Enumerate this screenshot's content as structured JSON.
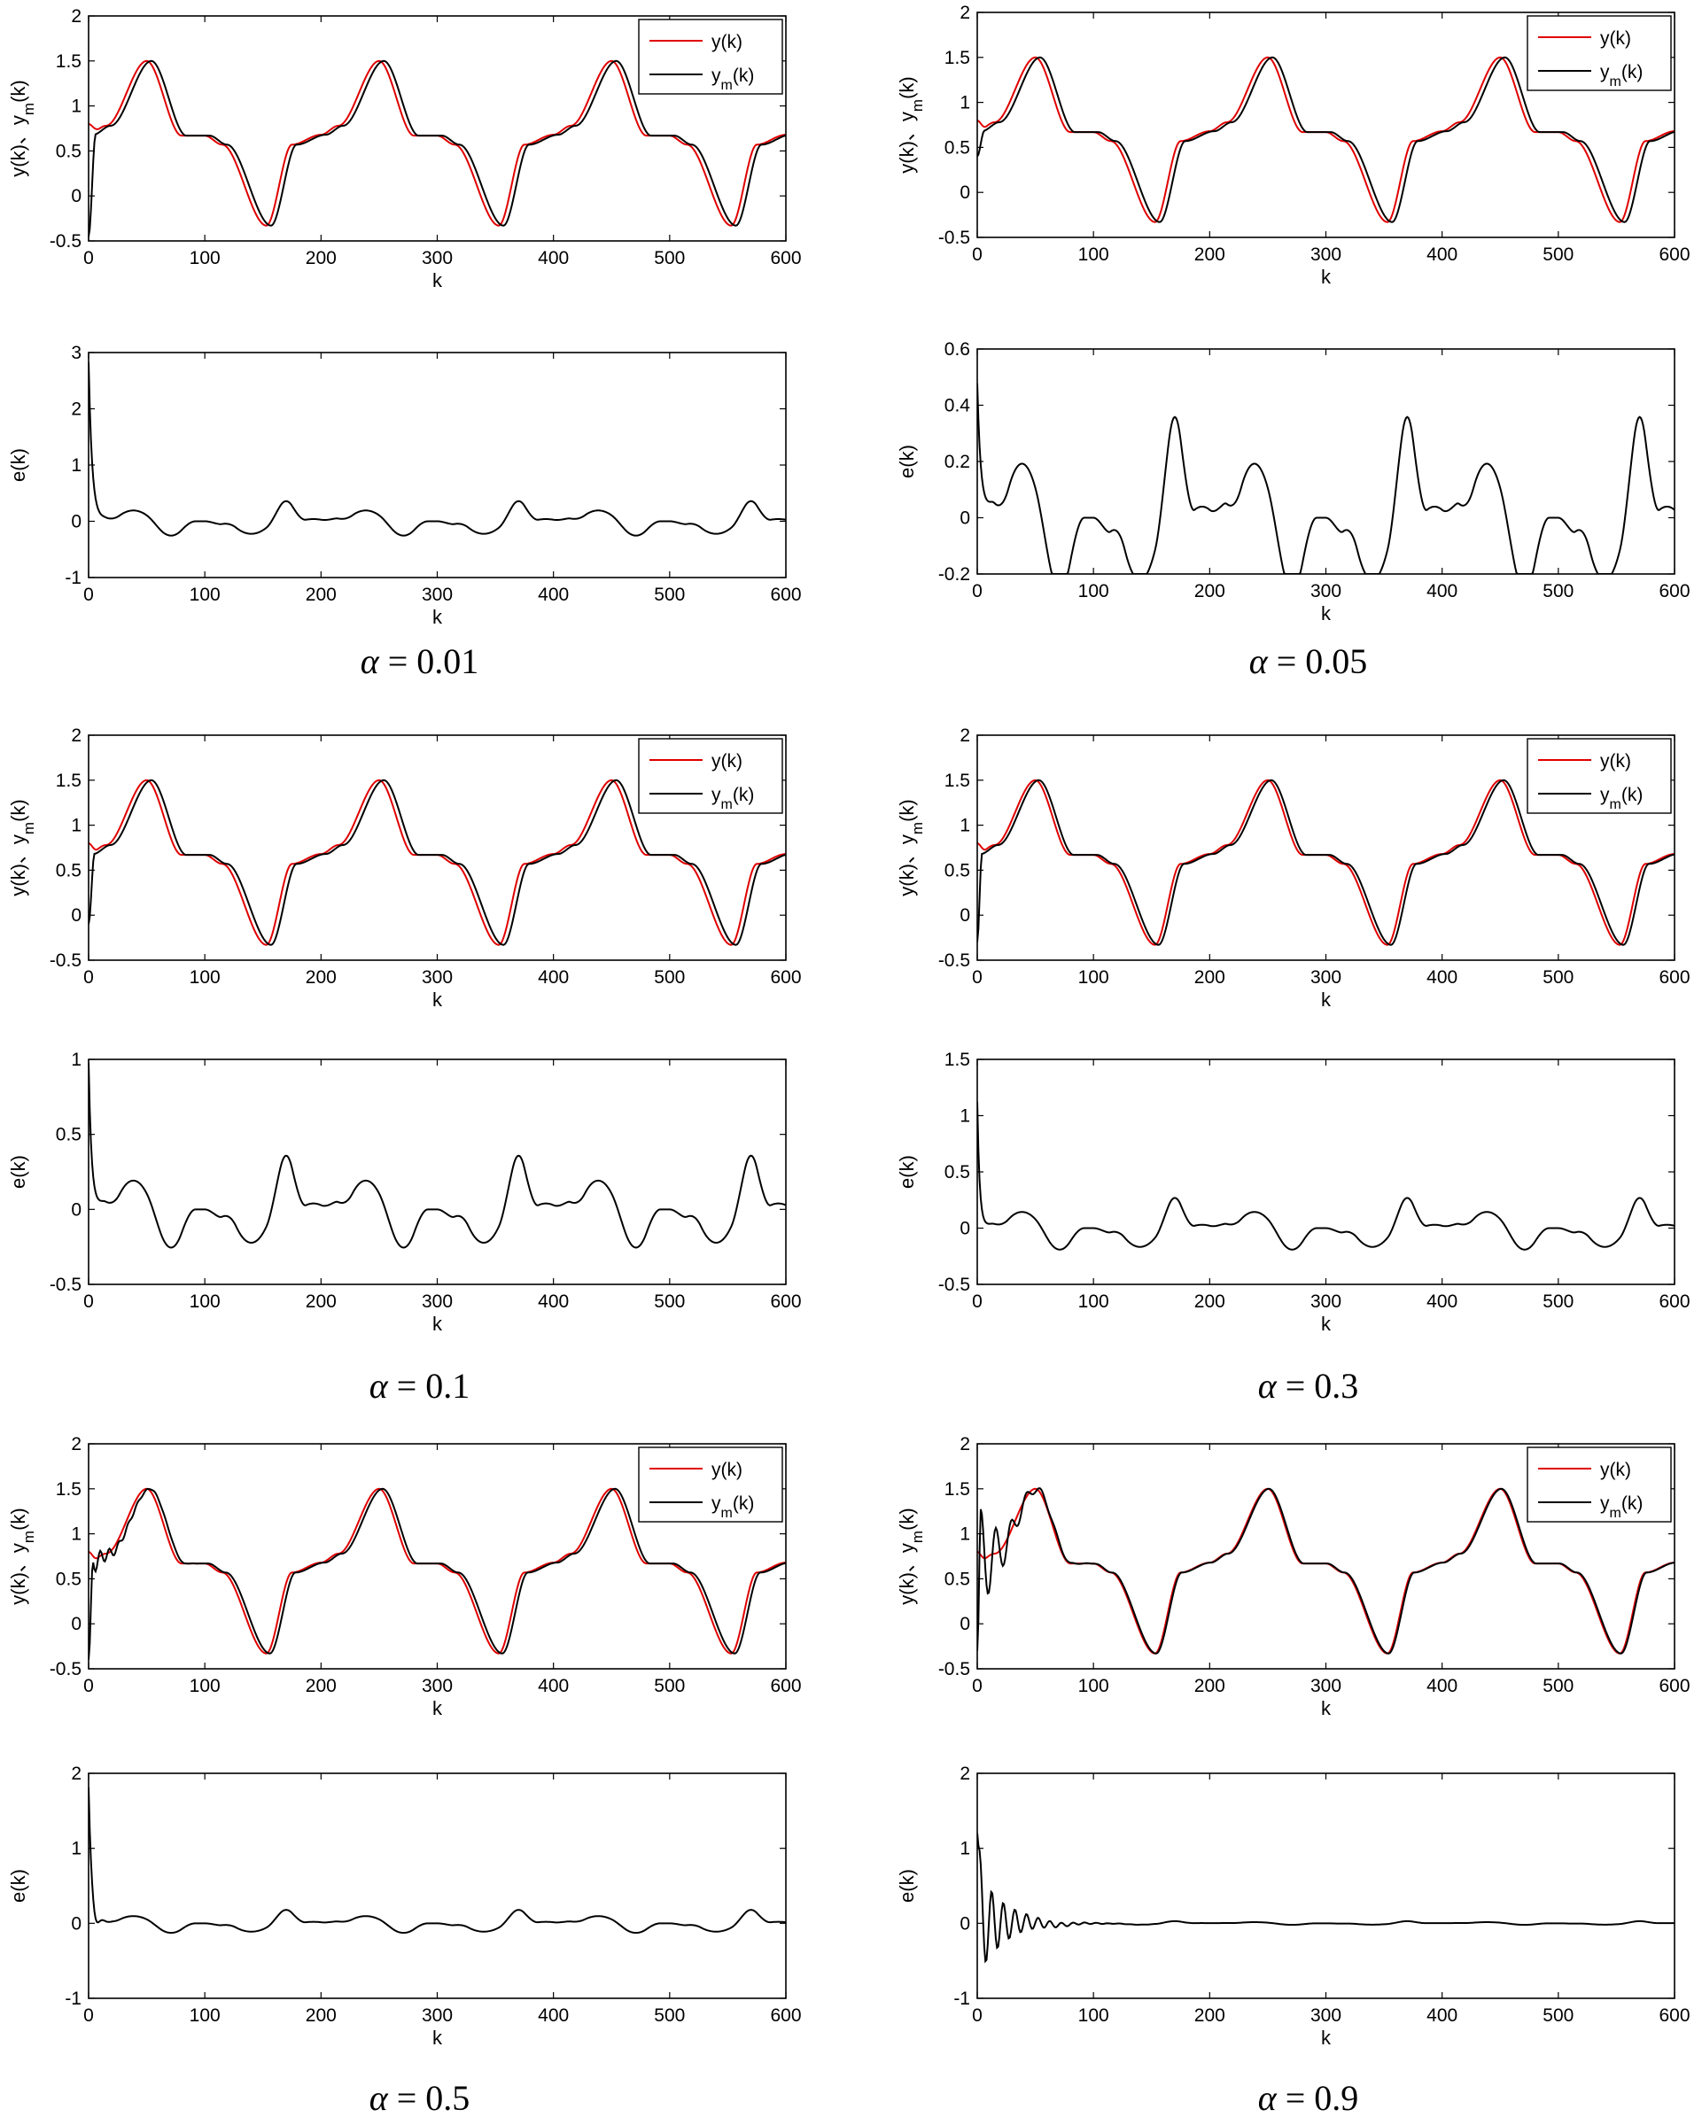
{
  "figure": {
    "series_colors": {
      "y": "#e00000",
      "ym": "#000000",
      "e": "#000000"
    }
  },
  "chart_data": [
    {
      "type": "line",
      "id": "p1",
      "xlabel": "k",
      "ylabel": "y(k)、y_m(k)",
      "ylim": [
        -0.5,
        2
      ],
      "xlim": [
        0,
        600
      ],
      "xticks": [
        0,
        100,
        200,
        300,
        400,
        500,
        600
      ],
      "yticks": [
        -0.5,
        0,
        0.5,
        1,
        1.5,
        2
      ],
      "legend": {
        "position": "top-right",
        "entries": [
          "y(k)",
          "y_m(k)"
        ]
      },
      "series": [
        {
          "name": "y(k)",
          "color": "#e00000",
          "signal": "ref",
          "start": 0.8,
          "settle": 10,
          "ripple": 0,
          "period": 0
        },
        {
          "name": "y_m(k)",
          "color": "#000000",
          "signal": "ref_lag",
          "lag": 4,
          "start": -0.45,
          "settle": 6,
          "ripple": 0,
          "period": 0
        }
      ]
    },
    {
      "type": "line",
      "id": "e1",
      "xlabel": "k",
      "ylabel": "e(k)",
      "ylim": [
        -1,
        3
      ],
      "xlim": [
        0,
        600
      ],
      "xticks": [
        0,
        100,
        200,
        300,
        400,
        500,
        600
      ],
      "yticks": [
        -1,
        0,
        1,
        2,
        3
      ],
      "series": [
        {
          "name": "e(k)",
          "color": "#000000",
          "signal": "error",
          "peak": 2.8,
          "decay": 3,
          "scale": 1.0,
          "osc": 0,
          "oscdecay": 1
        }
      ]
    },
    {
      "type": "caption",
      "id": "c1",
      "symbol": "α",
      "text": " = 0.01"
    },
    {
      "type": "line",
      "id": "p2",
      "xlabel": "k",
      "ylabel": "y(k)、y_m(k)",
      "ylim": [
        -0.5,
        2
      ],
      "xlim": [
        0,
        600
      ],
      "xticks": [
        0,
        100,
        200,
        300,
        400,
        500,
        600
      ],
      "yticks": [
        -0.5,
        0,
        0.5,
        1,
        1.5,
        2
      ],
      "legend": {
        "position": "top-right",
        "entries": [
          "y(k)",
          "y_m(k)"
        ]
      },
      "series": [
        {
          "name": "y(k)",
          "color": "#e00000",
          "signal": "ref",
          "start": 0.8,
          "settle": 8,
          "ripple": 0,
          "period": 0
        },
        {
          "name": "y_m(k)",
          "color": "#000000",
          "signal": "ref_lag",
          "lag": 4,
          "start": 0.4,
          "settle": 6,
          "ripple": 0,
          "period": 0
        }
      ]
    },
    {
      "type": "line",
      "id": "e2",
      "xlabel": "k",
      "ylabel": "e(k)",
      "ylim": [
        -0.2,
        0.6
      ],
      "xlim": [
        0,
        600
      ],
      "xticks": [
        0,
        100,
        200,
        300,
        400,
        500,
        600
      ],
      "yticks": [
        -0.2,
        0,
        0.2,
        0.4,
        0.6
      ],
      "series": [
        {
          "name": "e(k)",
          "color": "#000000",
          "signal": "error",
          "peak": 0.45,
          "decay": 3,
          "scale": 1.0,
          "osc": 0,
          "oscdecay": 1
        }
      ]
    },
    {
      "type": "caption",
      "id": "c2",
      "symbol": "α",
      "text": " = 0.05"
    },
    {
      "type": "line",
      "id": "p3",
      "xlabel": "k",
      "ylabel": "y(k)、y_m(k)",
      "ylim": [
        -0.5,
        2
      ],
      "xlim": [
        0,
        600
      ],
      "xticks": [
        0,
        100,
        200,
        300,
        400,
        500,
        600
      ],
      "yticks": [
        -0.5,
        0,
        0.5,
        1,
        1.5,
        2
      ],
      "legend": {
        "position": "top-right",
        "entries": [
          "y(k)",
          "y_m(k)"
        ]
      },
      "series": [
        {
          "name": "y(k)",
          "color": "#e00000",
          "signal": "ref",
          "start": 0.8,
          "settle": 8,
          "ripple": 0,
          "period": 0
        },
        {
          "name": "y_m(k)",
          "color": "#000000",
          "signal": "ref_lag",
          "lag": 4,
          "start": -0.1,
          "settle": 5,
          "ripple": 0,
          "period": 0
        }
      ]
    },
    {
      "type": "line",
      "id": "e3",
      "xlabel": "k",
      "ylabel": "e(k)",
      "ylim": [
        -0.5,
        1
      ],
      "xlim": [
        0,
        600
      ],
      "xticks": [
        0,
        100,
        200,
        300,
        400,
        500,
        600
      ],
      "yticks": [
        -0.5,
        0,
        0.5,
        1
      ],
      "series": [
        {
          "name": "e(k)",
          "color": "#000000",
          "signal": "error",
          "peak": 0.95,
          "decay": 2.5,
          "scale": 1.0,
          "osc": 0,
          "oscdecay": 1
        }
      ]
    },
    {
      "type": "caption",
      "id": "c3",
      "symbol": "α",
      "text": " = 0.1"
    },
    {
      "type": "line",
      "id": "p4",
      "xlabel": "k",
      "ylabel": "y(k)、y_m(k)",
      "ylim": [
        -0.5,
        2
      ],
      "xlim": [
        0,
        600
      ],
      "xticks": [
        0,
        100,
        200,
        300,
        400,
        500,
        600
      ],
      "yticks": [
        -0.5,
        0,
        0.5,
        1,
        1.5,
        2
      ],
      "legend": {
        "position": "top-right",
        "entries": [
          "y(k)",
          "y_m(k)"
        ]
      },
      "series": [
        {
          "name": "y(k)",
          "color": "#e00000",
          "signal": "ref",
          "start": 0.8,
          "settle": 8,
          "ripple": 0,
          "period": 0
        },
        {
          "name": "y_m(k)",
          "color": "#000000",
          "signal": "ref_lag",
          "lag": 3,
          "start": -0.3,
          "settle": 4,
          "ripple": 0,
          "period": 0
        }
      ]
    },
    {
      "type": "line",
      "id": "e4",
      "xlabel": "k",
      "ylabel": "e(k)",
      "ylim": [
        -0.5,
        1.5
      ],
      "xlim": [
        0,
        600
      ],
      "xticks": [
        0,
        100,
        200,
        300,
        400,
        500,
        600
      ],
      "yticks": [
        -0.5,
        0,
        0.5,
        1,
        1.5
      ],
      "series": [
        {
          "name": "e(k)",
          "color": "#000000",
          "signal": "error",
          "peak": 1.1,
          "decay": 2,
          "scale": 0.75,
          "osc": 0,
          "oscdecay": 1
        }
      ]
    },
    {
      "type": "caption",
      "id": "c4",
      "symbol": "α",
      "text": " = 0.3"
    },
    {
      "type": "line",
      "id": "p5",
      "xlabel": "k",
      "ylabel": "y(k)、y_m(k)",
      "ylim": [
        -0.5,
        2
      ],
      "xlim": [
        0,
        600
      ],
      "xticks": [
        0,
        100,
        200,
        300,
        400,
        500,
        600
      ],
      "yticks": [
        -0.5,
        0,
        0.5,
        1,
        1.5,
        2
      ],
      "legend": {
        "position": "top-right",
        "entries": [
          "y(k)",
          "y_m(k)"
        ]
      },
      "series": [
        {
          "name": "y(k)",
          "color": "#e00000",
          "signal": "ref",
          "start": 0.8,
          "settle": 8,
          "ripple": 0,
          "period": 0
        },
        {
          "name": "y_m(k)",
          "color": "#000000",
          "signal": "ref_lag",
          "lag": 3,
          "start": -0.4,
          "settle": 4,
          "ripple": 0.15,
          "period": 8
        }
      ]
    },
    {
      "type": "line",
      "id": "e5",
      "xlabel": "k",
      "ylabel": "e(k)",
      "ylim": [
        -1,
        2
      ],
      "xlim": [
        0,
        600
      ],
      "xticks": [
        0,
        100,
        200,
        300,
        400,
        500,
        600
      ],
      "yticks": [
        -1,
        0,
        1,
        2
      ],
      "series": [
        {
          "name": "e(k)",
          "color": "#000000",
          "signal": "error",
          "peak": 1.8,
          "decay": 2,
          "scale": 0.5,
          "osc": 0.3,
          "oscdecay": 4
        }
      ]
    },
    {
      "type": "caption",
      "id": "c5",
      "symbol": "α",
      "text": " = 0.5"
    },
    {
      "type": "line",
      "id": "p6",
      "xlabel": "k",
      "ylabel": "y(k)、y_m(k)",
      "ylim": [
        -0.5,
        2
      ],
      "xlim": [
        0,
        600
      ],
      "xticks": [
        0,
        100,
        200,
        300,
        400,
        500,
        600
      ],
      "yticks": [
        -0.5,
        0,
        0.5,
        1,
        1.5,
        2
      ],
      "legend": {
        "position": "top-right",
        "entries": [
          "y(k)",
          "y_m(k)"
        ]
      },
      "series": [
        {
          "name": "y(k)",
          "color": "#e00000",
          "signal": "ref",
          "start": 0.8,
          "settle": 8,
          "ripple": 0,
          "period": 0
        },
        {
          "name": "y_m(k)",
          "color": "#000000",
          "signal": "ref_lag",
          "lag": 1,
          "start": -0.3,
          "settle": 3,
          "ripple": 0.7,
          "period": 13
        }
      ]
    },
    {
      "type": "line",
      "id": "e6",
      "xlabel": "k",
      "ylabel": "e(k)",
      "ylim": [
        -1,
        2
      ],
      "xlim": [
        0,
        600
      ],
      "xticks": [
        0,
        100,
        200,
        300,
        400,
        500,
        600
      ],
      "yticks": [
        -1,
        0,
        1,
        2
      ],
      "series": [
        {
          "name": "e(k)",
          "color": "#000000",
          "signal": "error",
          "peak": 1.2,
          "decay": 1.5,
          "scale": 0.08,
          "osc": 0.75,
          "oscdecay": 22
        }
      ]
    },
    {
      "type": "caption",
      "id": "c6",
      "symbol": "α",
      "text": " = 0.9"
    }
  ]
}
